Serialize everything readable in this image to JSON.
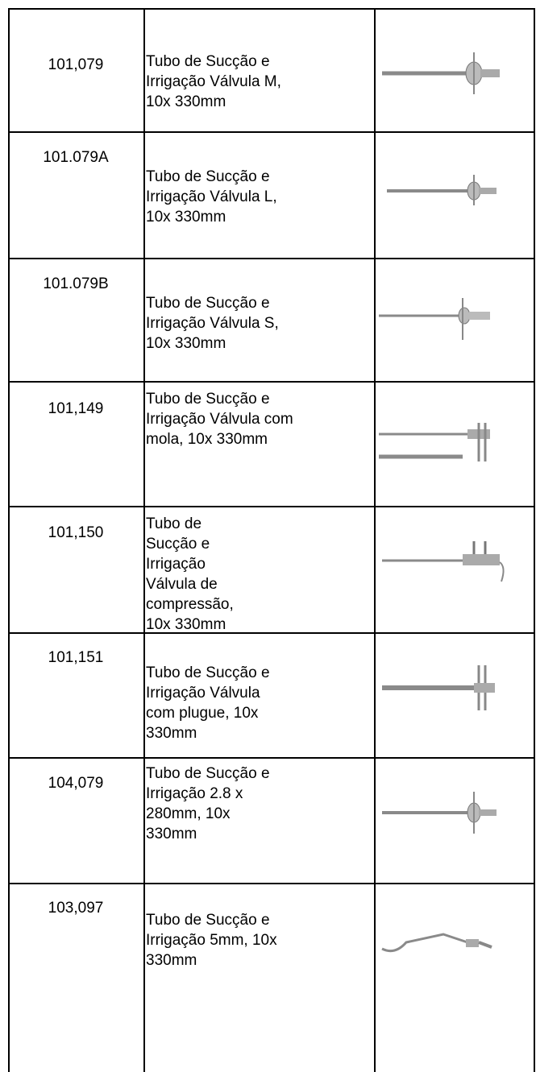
{
  "table": {
    "rows": [
      {
        "code": "101,079",
        "description": [
          "Tubo de Sucção e",
          "Irrigação Válvula M,",
          "10x 330mm"
        ]
      },
      {
        "code": "101.079A",
        "description": [
          "Tubo de Sucção e",
          "Irrigação Válvula L,",
          "10x 330mm"
        ]
      },
      {
        "code": "101.079B",
        "description": [
          "Tubo de Sucção e",
          "Irrigação Válvula S,",
          "10x 330mm"
        ]
      },
      {
        "code": "101,149",
        "description": [
          "Tubo de Sucção e",
          "Irrigação Válvula com",
          "mola, 10x 330mm"
        ]
      },
      {
        "code": "101,150",
        "description": [
          "Tubo de",
          "Sucção e",
          "Irrigação",
          "Válvula de",
          "compressão,",
          "10x 330mm"
        ]
      },
      {
        "code": "101,151",
        "description": [
          "Tubo de Sucção e",
          "Irrigação Válvula",
          "com plugue, 10x",
          "330mm"
        ]
      },
      {
        "code": "104,079",
        "description": [
          "Tubo de Sucção e",
          "Irrigação 2.8 x",
          "280mm, 10x",
          "330mm"
        ]
      },
      {
        "code": "103,097",
        "description": [
          "Tubo de Sucção e",
          "Irrigação 5mm, 10x",
          "330mm"
        ]
      }
    ]
  }
}
